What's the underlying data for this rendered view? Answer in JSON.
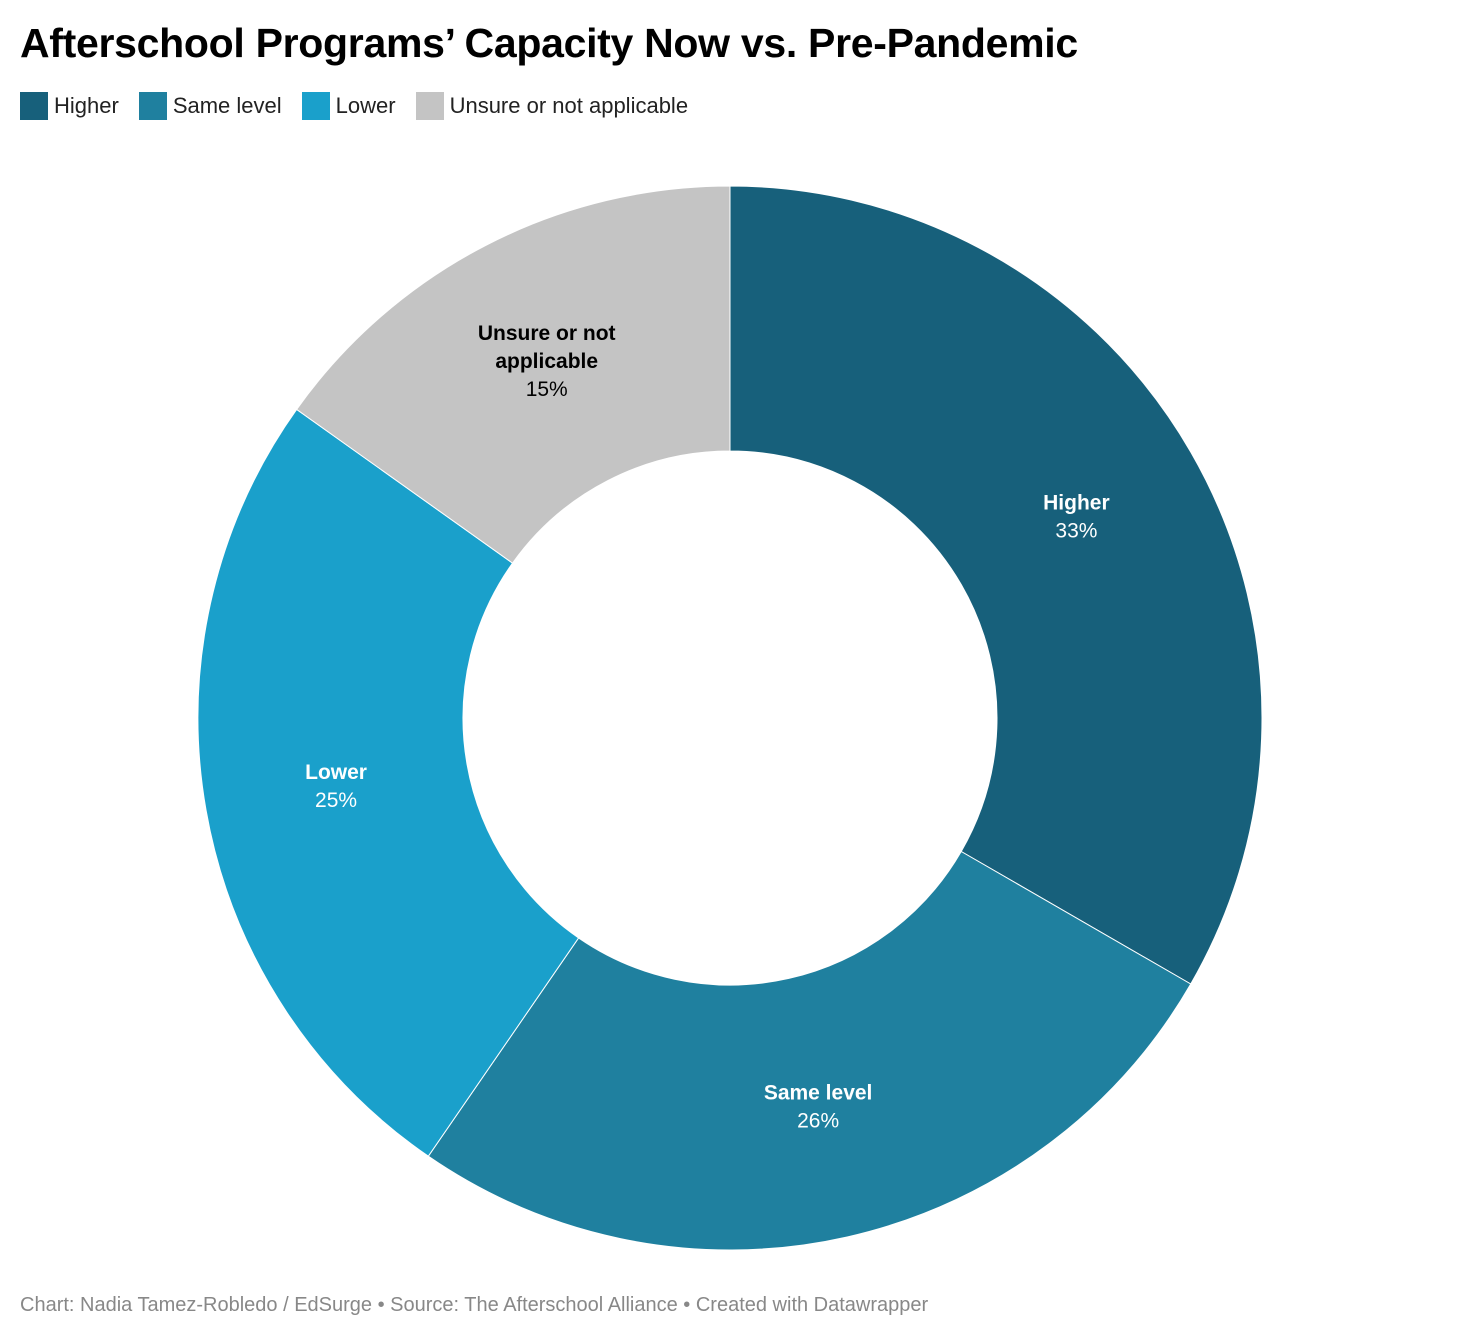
{
  "chart_data": {
    "type": "pie",
    "title": "Afterschool Programs’ Capacity Now vs. Pre-Pandemic",
    "categories": [
      "Higher",
      "Same level",
      "Lower",
      "Unsure or not applicable"
    ],
    "values": [
      33,
      26,
      25,
      15
    ],
    "value_labels": [
      "33%",
      "26%",
      "25%",
      "15%"
    ],
    "slice_labels": [
      [
        "Higher"
      ],
      [
        "Same level"
      ],
      [
        "Lower"
      ],
      [
        "Unsure or not",
        "applicable"
      ]
    ],
    "colors": [
      "#17607b",
      "#1f809f",
      "#1aa0cb",
      "#c4c4c4"
    ],
    "label_colors": [
      "#ffffff",
      "#ffffff",
      "#ffffff",
      "#000000"
    ],
    "legend_position": "top-left",
    "footer": "Chart: Nadia Tamez-Robledo / EdSurge • Source: The Afterschool Alliance • Created with Datawrapper"
  }
}
